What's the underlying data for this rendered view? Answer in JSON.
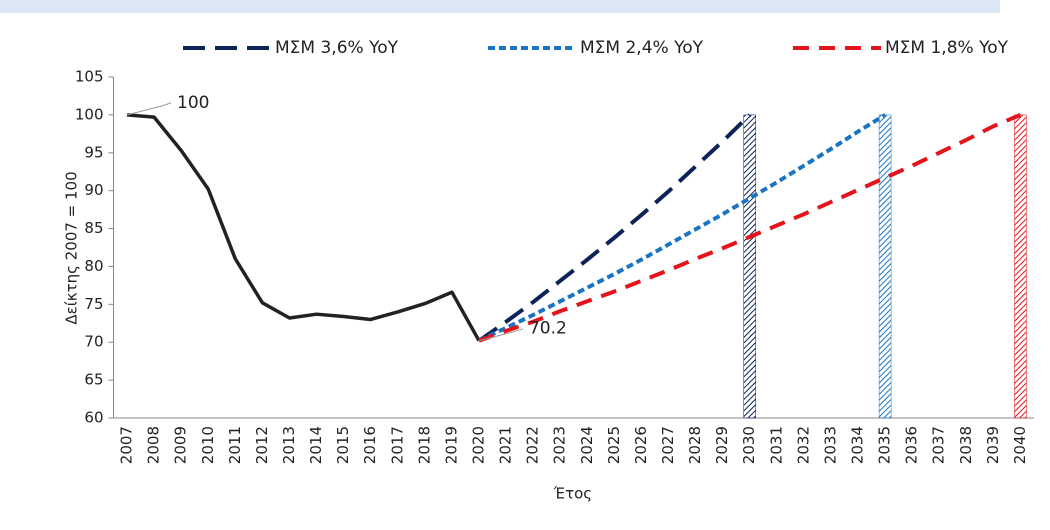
{
  "chart_data": {
    "type": "line",
    "y_label": "Δείκτης 2007 = 100",
    "x_label": "Έτος",
    "categories": [
      "2007",
      "2008",
      "2009",
      "2010",
      "2011",
      "2012",
      "2013",
      "2014",
      "2015",
      "2016",
      "2017",
      "2018",
      "2019",
      "2020",
      "2021",
      "2022",
      "2023",
      "2024",
      "2025",
      "2026",
      "2027",
      "2028",
      "2029",
      "2030",
      "2031",
      "2032",
      "2033",
      "2034",
      "2035",
      "2036",
      "2037",
      "2038",
      "2039",
      "2040"
    ],
    "series": [
      {
        "color": "#222222",
        "values": [
          100,
          99.7,
          95.3,
          90.2,
          81,
          75.2,
          73.2,
          73.7,
          73.4,
          73.0,
          74.0,
          75.1,
          76.6,
          70.2,
          null,
          null,
          null,
          null,
          null,
          null,
          null,
          null,
          null,
          null,
          null,
          null,
          null,
          null,
          null,
          null,
          null,
          null,
          null,
          null
        ]
      },
      {
        "name": "ΜΣΜ 3,6% YoY",
        "color": "#0d2357",
        "values": [
          null,
          null,
          null,
          null,
          null,
          null,
          null,
          null,
          null,
          null,
          null,
          null,
          null,
          70.2,
          72.7,
          75.3,
          78.1,
          80.9,
          83.8,
          86.8,
          89.9,
          93.2,
          96.5,
          100,
          null,
          null,
          null,
          null,
          null,
          null,
          null,
          null,
          null,
          null
        ]
      },
      {
        "name": "ΜΣΜ 2,4% YoY",
        "color": "#1b74c2",
        "values": [
          null,
          null,
          null,
          null,
          null,
          null,
          null,
          null,
          null,
          null,
          null,
          null,
          null,
          70.2,
          71.9,
          73.6,
          75.4,
          77.2,
          79.0,
          80.9,
          82.9,
          84.9,
          86.9,
          89.0,
          91.1,
          93.3,
          95.5,
          97.8,
          100,
          null,
          null,
          null,
          null,
          null
        ]
      },
      {
        "name": "ΜΣΜ 1,8% YoY",
        "color": "#e3141c",
        "values": [
          null,
          null,
          null,
          null,
          null,
          null,
          null,
          null,
          null,
          null,
          null,
          null,
          null,
          70.2,
          71.5,
          72.7,
          74.1,
          75.4,
          76.7,
          78.1,
          79.5,
          81.0,
          82.4,
          83.9,
          85.4,
          86.9,
          88.5,
          90.1,
          91.7,
          93.3,
          95.0,
          96.7,
          98.5,
          100
        ]
      }
    ],
    "bars": [
      {
        "category": "2030",
        "value": 100,
        "color": "#0d2357"
      },
      {
        "category": "2035",
        "value": 100,
        "color": "#1b74c2"
      },
      {
        "category": "2040",
        "value": 100,
        "color": "#e3141c"
      }
    ],
    "annotations": [
      {
        "label": "100",
        "category": "2007",
        "value": 100
      },
      {
        "label": "70.2",
        "category": "2020",
        "value": 70.2
      }
    ],
    "ylim": [
      60,
      105
    ],
    "yticks": [
      60,
      65,
      70,
      75,
      80,
      85,
      90,
      95,
      100,
      105
    ],
    "grid": false,
    "legend": "top"
  }
}
